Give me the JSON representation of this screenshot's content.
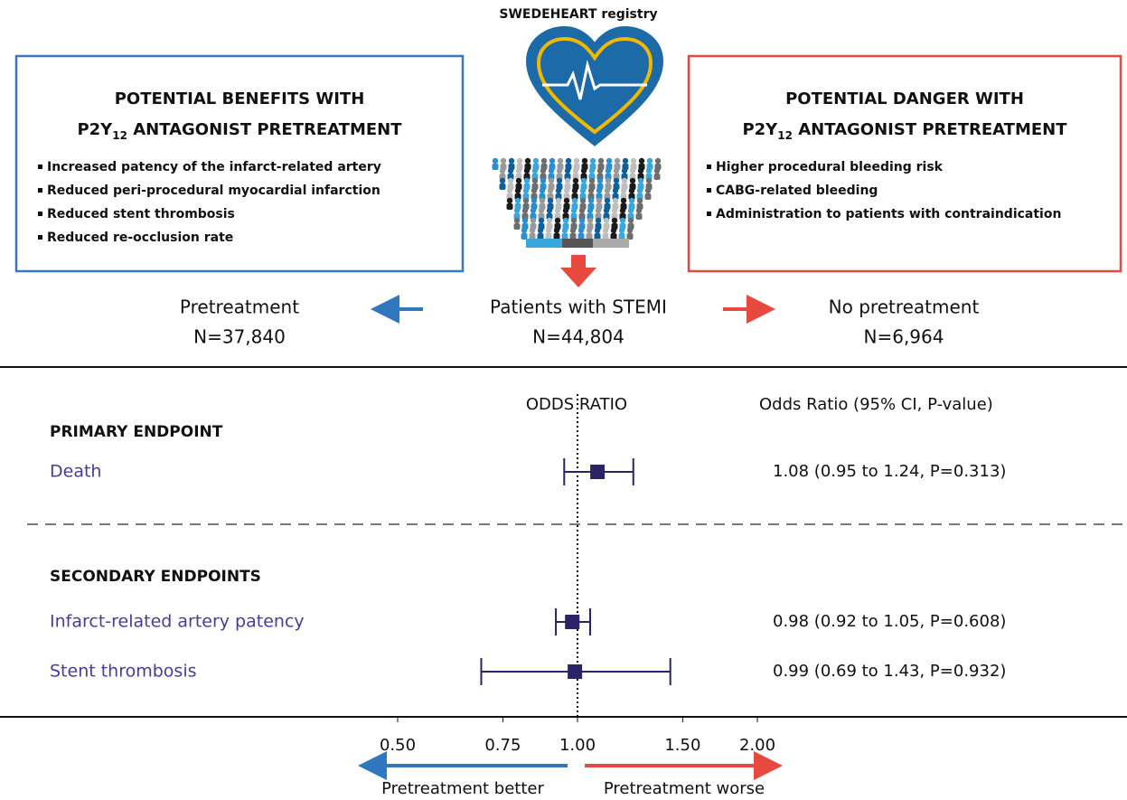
{
  "header": {
    "title": "SWEDEHEART registry"
  },
  "benefits": {
    "title_line1": "POTENTIAL BENEFITS WITH",
    "title_line2": {
      "pre": "P2Y",
      "sub": "12",
      "post": " ANTAGONIST PRETREATMENT"
    },
    "items": [
      "Increased patency of the infarct-related artery",
      "Reduced peri-procedural myocardial infarction",
      "Reduced stent thrombosis",
      "Reduced re-occlusion rate"
    ]
  },
  "dangers": {
    "title_line1": "POTENTIAL DANGER WITH",
    "title_line2": {
      "pre": "P2Y",
      "sub": "12",
      "post": " ANTAGONIST PRETREATMENT"
    },
    "items": [
      "Higher procedural bleeding risk",
      "CABG-related bleeding",
      "Administration to patients with contraindication"
    ]
  },
  "groups": {
    "pretreatment": {
      "label": "Pretreatment",
      "n": "N=37,840"
    },
    "total": {
      "label": "Patients with STEMI",
      "n": "N=44,804"
    },
    "none": {
      "label": "No pretreatment",
      "n": "N=6,964"
    }
  },
  "forest": {
    "axis_title": "ODDS RATIO",
    "stats_header": "Odds Ratio (95% CI, P-value)",
    "log_scale": true,
    "xlim": [
      0.5,
      2
    ],
    "xticks": [
      {
        "value": 0.5,
        "label": "0.50"
      },
      {
        "value": 0.75,
        "label": "0.75"
      },
      {
        "value": 1,
        "label": "1.00"
      },
      {
        "value": 1.5,
        "label": "1.50"
      },
      {
        "value": 2,
        "label": "2.00"
      }
    ],
    "reference": 1,
    "color": "#2a2466",
    "sections": [
      {
        "title": "PRIMARY ENDPOINT",
        "rows": [
          {
            "label": "Death",
            "estimate": 1.08,
            "lower": 0.95,
            "upper": 1.24,
            "text": "1.08 (0.95 to 1.24, P=0.313)"
          }
        ]
      },
      {
        "title": "SECONDARY ENDPOINTS",
        "rows": [
          {
            "label": "Infarct-related artery patency",
            "estimate": 0.98,
            "lower": 0.92,
            "upper": 1.05,
            "text": "0.98 (0.92 to 1.05, P=0.608)"
          },
          {
            "label": "Stent thrombosis",
            "estimate": 0.99,
            "lower": 0.69,
            "upper": 1.43,
            "text": "0.99 (0.69 to 1.43, P=0.932)"
          }
        ]
      }
    ],
    "better_label": "Pretreatment better",
    "worse_label": "Pretreatment worse"
  }
}
